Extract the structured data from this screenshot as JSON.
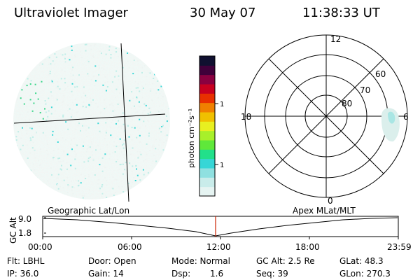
{
  "header": {
    "instrument": "Ultraviolet Imager",
    "date": "30 May 07",
    "time": "11:38:33 UT"
  },
  "colorbar": {
    "label_html": "photon cm",
    "label_units": "photon cm⁻²s⁻¹",
    "ticks": [
      "100",
      "10"
    ],
    "colors": [
      "#e6f4f2",
      "#c9ecea",
      "#8fe0e0",
      "#37d6d6",
      "#22e08a",
      "#5fe83a",
      "#a8f02a",
      "#e8f020",
      "#f0c000",
      "#f08000",
      "#e83000",
      "#c80020",
      "#8a0040",
      "#40003a",
      "#101030"
    ]
  },
  "geo_map": {
    "label": "Geographic Lat/Lon",
    "colors": {
      "low": "#eef4f2",
      "mid": "#bfeee8",
      "high": "#3bd8d8",
      "peak": "#3ad68a"
    }
  },
  "polar_plot": {
    "label": "Apex MLat/MLT",
    "mlt_labels": {
      "top": "12",
      "left": "18",
      "right": "6",
      "bottom": "0"
    },
    "lat_labels": [
      "60",
      "70",
      "80"
    ]
  },
  "timeline": {
    "y_axis_label": "GC Alt",
    "y_ticks": [
      "9.0",
      "1.8"
    ],
    "x_ticks": [
      "00:00",
      "06:00",
      "12:00",
      "18:00",
      "23:59"
    ],
    "marker_color": "#cc2200"
  },
  "info": {
    "filter": "Flt: LBHL",
    "ip": "IP: 36.0",
    "door": "Door: Open",
    "gain": "Gain: 14",
    "mode": "Mode: Normal",
    "dsp_label": "Dsp:",
    "dsp_value": "1.6",
    "gc_alt": "GC Alt: 2.5 Re",
    "seq": "Seq: 39",
    "glat": "GLat: 48.3",
    "glon": "GLon: 270.3"
  }
}
